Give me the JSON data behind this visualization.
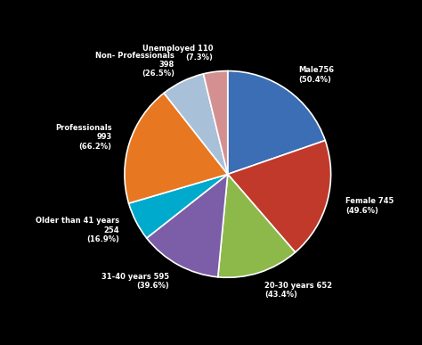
{
  "slices": [
    {
      "label": "Male756\n(50.4%)",
      "size": 26,
      "color": "#3B6EB5"
    },
    {
      "label": "Female 745\n(49.6%)",
      "size": 25,
      "color": "#C0392B"
    },
    {
      "label": "20-30 years 652\n(43.4%)",
      "size": 17,
      "color": "#8DB94A"
    },
    {
      "label": "31-40 years 595\n(39.6%)",
      "size": 17,
      "color": "#7B5EA7"
    },
    {
      "label": "Older than 41 years\n254\n(16.9%)",
      "size": 8,
      "color": "#00AACC"
    },
    {
      "label": "Professionals\n993\n(66.2%)",
      "size": 25,
      "color": "#E87722"
    },
    {
      "label": "Non- Professionals\n398\n(26.5%)",
      "size": 9,
      "color": "#A8C0D8"
    },
    {
      "label": "Unemployed 110\n(7.3%)",
      "size": 5,
      "color": "#D49090"
    }
  ],
  "background_color": "#000000",
  "text_color": "#ffffff"
}
